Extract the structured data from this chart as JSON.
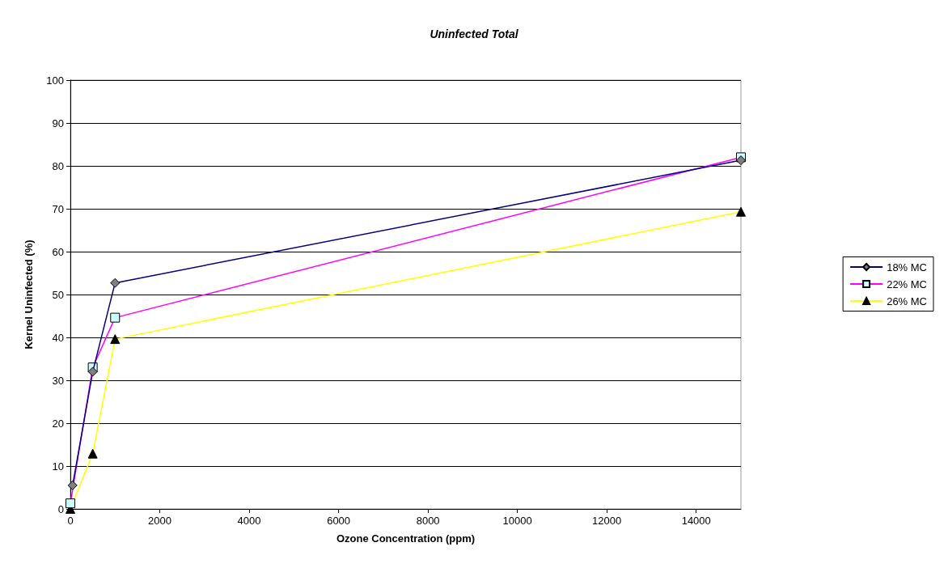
{
  "chart_data": {
    "type": "line",
    "title": "Uninfected Total",
    "xlabel": "Ozone Concentration (ppm)",
    "ylabel": "Kernel Uninfected (%)",
    "x": [
      0,
      500,
      1000,
      15000
    ],
    "series": [
      {
        "name": "18% MC",
        "color": "#000080",
        "marker": "diamond",
        "x": [
          50,
          500,
          1000,
          15000
        ],
        "values": [
          5.5,
          32,
          52.7,
          81.3
        ]
      },
      {
        "name": "22% MC",
        "color": "#ff00ff",
        "marker": "square",
        "values": [
          1.3,
          33,
          44.6,
          82
        ]
      },
      {
        "name": "26% MC",
        "color": "#ffff00",
        "marker": "triangle",
        "values": [
          0,
          12.9,
          39.6,
          69.3
        ]
      }
    ],
    "xlim": [
      0,
      15000
    ],
    "xticks": [
      0,
      2000,
      4000,
      6000,
      8000,
      10000,
      12000,
      14000
    ],
    "ylim": [
      0,
      100
    ],
    "yticks": [
      0,
      10,
      20,
      30,
      40,
      50,
      60,
      70,
      80,
      90,
      100
    ],
    "grid": "y",
    "legend": "right"
  }
}
